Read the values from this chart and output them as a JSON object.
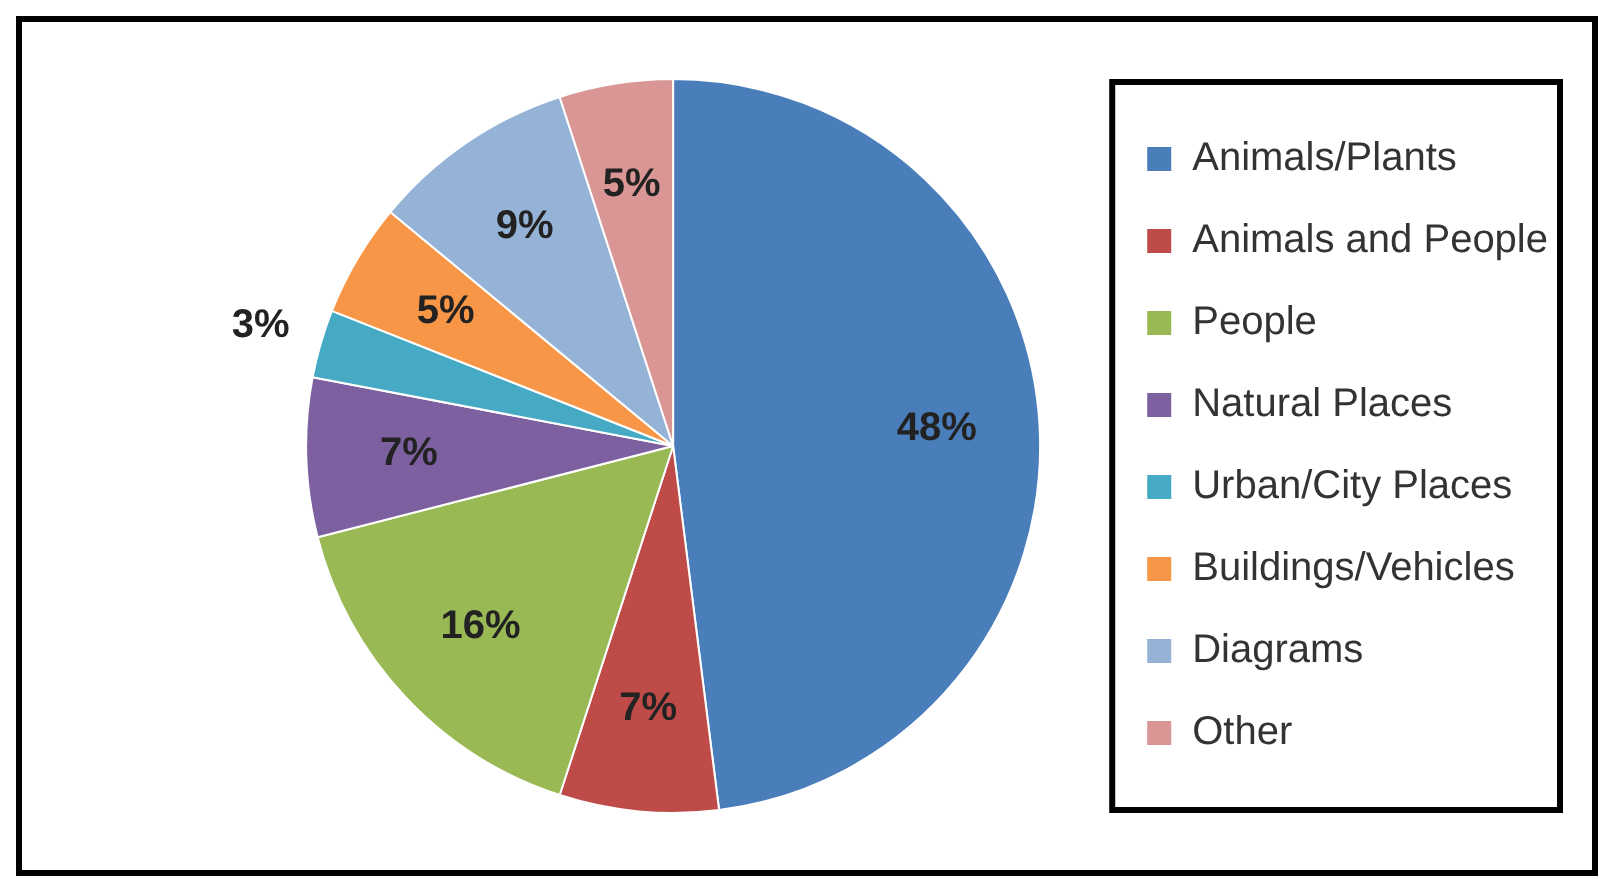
{
  "chart_data": {
    "type": "pie",
    "categories": [
      "Animals/Plants",
      "Animals and People",
      "People",
      "Natural Places",
      "Urban/City Places",
      "Buildings/Vehicles",
      "Diagrams",
      "Other"
    ],
    "values": [
      48,
      7,
      16,
      7,
      3,
      5,
      9,
      5
    ],
    "colors": [
      "#4a7ebb",
      "#be4b48",
      "#98b954",
      "#7d60a0",
      "#46aac5",
      "#f79646",
      "#95b3d7",
      "#d99694"
    ],
    "value_labels": [
      "48%",
      "7%",
      "16%",
      "7%",
      "3%",
      "5%",
      "9%",
      "5%"
    ],
    "legend": "right"
  }
}
